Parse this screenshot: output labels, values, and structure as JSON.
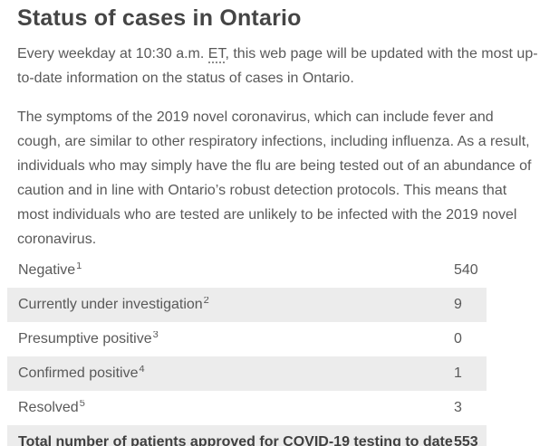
{
  "page": {
    "title": "Status of cases in Ontario",
    "intro": {
      "before_abbr": "Every weekday at 10:30 a.m. ",
      "abbr": "ET",
      "after_abbr": ", this web page will be updated with the most up-to-date information on the status of cases in Ontario."
    },
    "symptoms_paragraph": "The symptoms of the 2019 novel coronavirus, which can include fever and cough, are similar to other respiratory infections, including influenza. As a result, individuals who may simply have the flu are being tested out of an abundance of caution and in line with Ontario’s robust detection protocols. This means that most individuals who are tested are unlikely to be infected with the 2019 novel coronavirus."
  },
  "table": {
    "rows": [
      {
        "label": "Negative",
        "footnote": "1",
        "value": "540",
        "shaded": false,
        "total": false
      },
      {
        "label": "Currently under investigation",
        "footnote": "2",
        "value": "9",
        "shaded": true,
        "total": false
      },
      {
        "label": "Presumptive positive",
        "footnote": "3",
        "value": "0",
        "shaded": false,
        "total": false
      },
      {
        "label": "Confirmed positive",
        "footnote": "4",
        "value": "1",
        "shaded": true,
        "total": false
      },
      {
        "label": "Resolved",
        "footnote": "5",
        "value": "3",
        "shaded": false,
        "total": false
      },
      {
        "label": "Total number of patients approved for COVID-19 testing to date",
        "footnote": "",
        "value": "553",
        "shaded": true,
        "total": true
      }
    ]
  },
  "colors": {
    "background": "#ffffff",
    "heading_text": "#454545",
    "body_text": "#595959",
    "total_text": "#404040",
    "row_stripe": "#ececec",
    "abbr_dotted_underline": "#8d8d8d"
  }
}
